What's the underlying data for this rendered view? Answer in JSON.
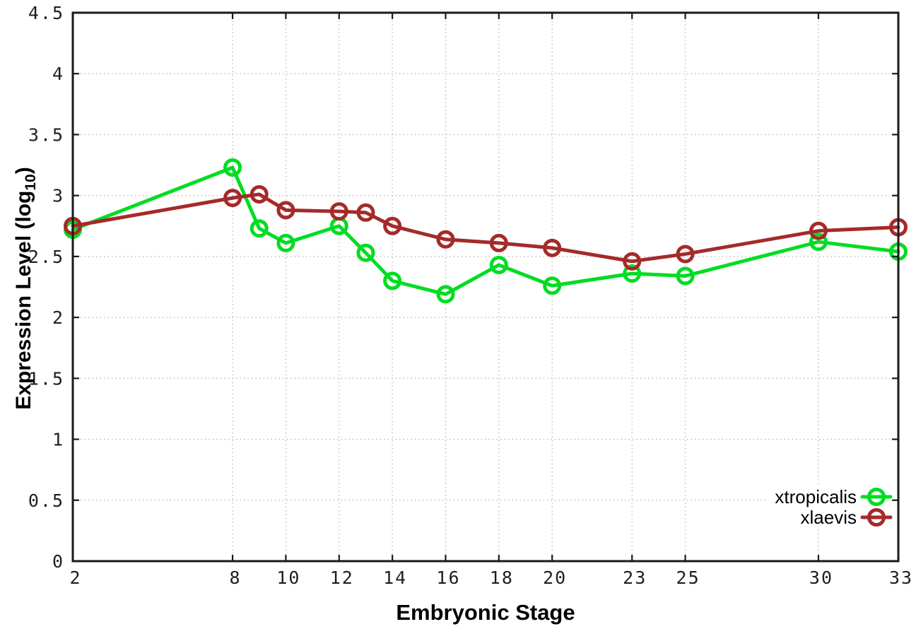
{
  "chart_data": {
    "type": "line",
    "title": "",
    "xlabel": "Embryonic Stage",
    "ylabel": "Expression Level (log10)",
    "ylabel_parts": {
      "prefix": "Expression Level (log",
      "sub": "10",
      "suffix": ")"
    },
    "x": [
      2,
      8,
      9,
      10,
      12,
      13,
      14,
      16,
      18,
      20,
      23,
      25,
      30,
      33
    ],
    "series": [
      {
        "name": "xtropicalis",
        "color": "#00DD22",
        "marker": "open-circle",
        "values": [
          2.72,
          3.23,
          2.73,
          2.61,
          2.75,
          2.53,
          2.3,
          2.19,
          2.43,
          2.26,
          2.36,
          2.34,
          2.62,
          2.54
        ]
      },
      {
        "name": "xlaevis",
        "color": "#A52A2A",
        "marker": "open-circle",
        "values": [
          2.75,
          2.98,
          3.01,
          2.88,
          2.87,
          2.86,
          2.75,
          2.64,
          2.61,
          2.57,
          2.46,
          2.52,
          2.71,
          2.74
        ]
      }
    ],
    "xlim": [
      2,
      33
    ],
    "ylim": [
      0,
      4.5
    ],
    "xtick_labels": [
      "2",
      "8",
      "10",
      "12",
      "14",
      "16",
      "18",
      "20",
      "23",
      "25",
      "30",
      "33"
    ],
    "xtick_values": [
      2,
      8,
      10,
      12,
      14,
      16,
      18,
      20,
      23,
      25,
      30,
      33
    ],
    "ytick_labels": [
      "0",
      "0.5",
      "1",
      "1.5",
      "2",
      "2.5",
      "3",
      "3.5",
      "4",
      "4.5"
    ],
    "ytick_values": [
      0,
      0.5,
      1,
      1.5,
      2,
      2.5,
      3,
      3.5,
      4,
      4.5
    ],
    "grid": true,
    "grid_style": "dotted",
    "legend_position": "bottom-right",
    "colors": {
      "border": "#1a1a1a",
      "grid": "#bbbbbb",
      "background": "#ffffff",
      "tick_text": "#1f1f1f"
    }
  }
}
